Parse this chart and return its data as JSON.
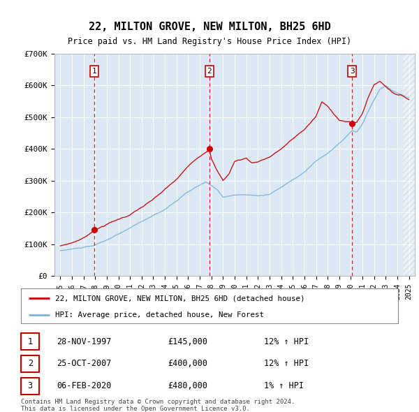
{
  "title": "22, MILTON GROVE, NEW MILTON, BH25 6HD",
  "subtitle": "Price paid vs. HM Land Registry's House Price Index (HPI)",
  "plot_bg": "#dce9f5",
  "red_line_label": "22, MILTON GROVE, NEW MILTON, BH25 6HD (detached house)",
  "blue_line_label": "HPI: Average price, detached house, New Forest",
  "transactions": [
    {
      "num": 1,
      "date": "28-NOV-1997",
      "price": 145000,
      "hpi_pct": "12%",
      "x_year": 1997.91
    },
    {
      "num": 2,
      "date": "25-OCT-2007",
      "price": 400000,
      "hpi_pct": "12%",
      "x_year": 2007.82
    },
    {
      "num": 3,
      "date": "06-FEB-2020",
      "price": 480000,
      "hpi_pct": "1%",
      "x_year": 2020.1
    }
  ],
  "footer": "Contains HM Land Registry data © Crown copyright and database right 2024.\nThis data is licensed under the Open Government Licence v3.0.",
  "ylim": [
    0,
    700000
  ],
  "yticks": [
    0,
    100000,
    200000,
    300000,
    400000,
    500000,
    600000,
    700000
  ],
  "ytick_labels": [
    "£0",
    "£100K",
    "£200K",
    "£300K",
    "£400K",
    "£500K",
    "£600K",
    "£700K"
  ],
  "xlim_start": 1994.5,
  "xlim_end": 2025.5,
  "hatch_start": 2024.5
}
